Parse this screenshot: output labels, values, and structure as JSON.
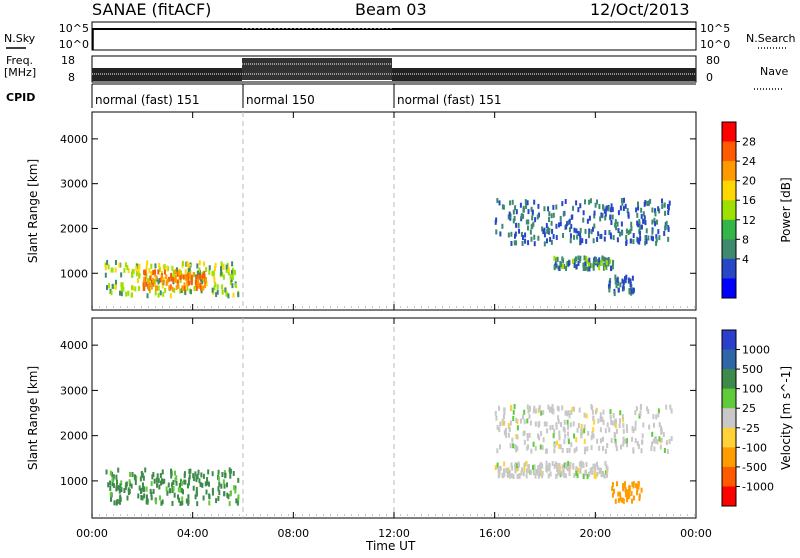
{
  "header": {
    "title": "SANAE (fitACF)",
    "beam": "Beam 03",
    "date": "12/Oct/2013"
  },
  "status_panel": {
    "nsky_label": "N.Sky",
    "nsky_ticks": [
      "10^5",
      "10^0"
    ],
    "nsearch_label": "N.Search",
    "nsearch_ticks": [
      "10^5",
      "10^0"
    ],
    "freq_label": "Freq.",
    "freq_unit": "[MHz]",
    "freq_ticks": [
      "18",
      "8"
    ],
    "nave_label": "Nave",
    "nave_ticks": [
      "80",
      "0"
    ],
    "cpid_label": "CPID",
    "cpid_segments": [
      {
        "label": "normal (fast) 151",
        "start_hour": 0,
        "end_hour": 6
      },
      {
        "label": "normal 150",
        "start_hour": 6,
        "end_hour": 12
      },
      {
        "label": "normal (fast) 151",
        "start_hour": 12,
        "end_hour": 24
      }
    ]
  },
  "x_axis": {
    "title": "Time UT",
    "ticks": [
      "00:00",
      "04:00",
      "08:00",
      "12:00",
      "16:00",
      "20:00",
      "00:00"
    ]
  },
  "power_colorbar": {
    "label": "Power [dB]",
    "ticks": [
      "28",
      "24",
      "20",
      "16",
      "12",
      "8",
      "4"
    ],
    "colors": [
      "#ff0000",
      "#ff5a00",
      "#ff9900",
      "#ffd700",
      "#9ee000",
      "#33b54a",
      "#3d8a6e",
      "#2747c8",
      "#0000ff"
    ]
  },
  "velocity_colorbar": {
    "label": "Velocity [m s^-1]",
    "ticks": [
      "1000",
      "500",
      "100",
      "25",
      "-25",
      "-100",
      "-500",
      "-1000"
    ],
    "colors": [
      "#2a3fcc",
      "#2f66a8",
      "#3d8a4a",
      "#5fcb3a",
      "#c8c8c8",
      "#ffd23a",
      "#ff9c00",
      "#ff5a00",
      "#ff0000"
    ]
  },
  "chart_data": [
    {
      "type": "heatmap",
      "title": "Power",
      "ylabel": "Slant Range [km]",
      "xlabel": "Time UT",
      "ylim": [
        180,
        4600
      ],
      "xlim": [
        0,
        24
      ],
      "yticks": [
        1000,
        2000,
        3000,
        4000
      ],
      "grid": false,
      "dashed_time_markers": [
        6,
        12
      ],
      "regions": [
        {
          "t0": 0.5,
          "t1": 5.8,
          "r0": 550,
          "r1": 1300,
          "level": 12
        },
        {
          "t0": 2.0,
          "t1": 4.5,
          "r0": 700,
          "r1": 1100,
          "level": 22
        },
        {
          "t0": 18.3,
          "t1": 20.7,
          "r0": 1150,
          "r1": 1400,
          "level": 8
        },
        {
          "t0": 20.5,
          "t1": 21.5,
          "r0": 600,
          "r1": 1000,
          "level": 6
        },
        {
          "t0": 16.0,
          "t1": 23.0,
          "r0": 1700,
          "r1": 2700,
          "level": 6
        }
      ]
    },
    {
      "type": "heatmap",
      "title": "Velocity",
      "ylabel": "Slant Range [km]",
      "xlabel": "Time UT",
      "ylim": [
        180,
        4600
      ],
      "xlim": [
        0,
        24
      ],
      "yticks": [
        1000,
        2000,
        3000,
        4000
      ],
      "grid": false,
      "dashed_time_markers": [
        6,
        12
      ],
      "regions": [
        {
          "t0": 0.5,
          "t1": 5.8,
          "r0": 550,
          "r1": 1300,
          "level": 60
        },
        {
          "t0": 16.0,
          "t1": 20.5,
          "r0": 1150,
          "r1": 1450,
          "level": 0
        },
        {
          "t0": 20.6,
          "t1": 21.8,
          "r0": 600,
          "r1": 1000,
          "level": -300
        },
        {
          "t0": 16.0,
          "t1": 23.0,
          "r0": 1700,
          "r1": 2700,
          "level": 0
        }
      ]
    }
  ]
}
